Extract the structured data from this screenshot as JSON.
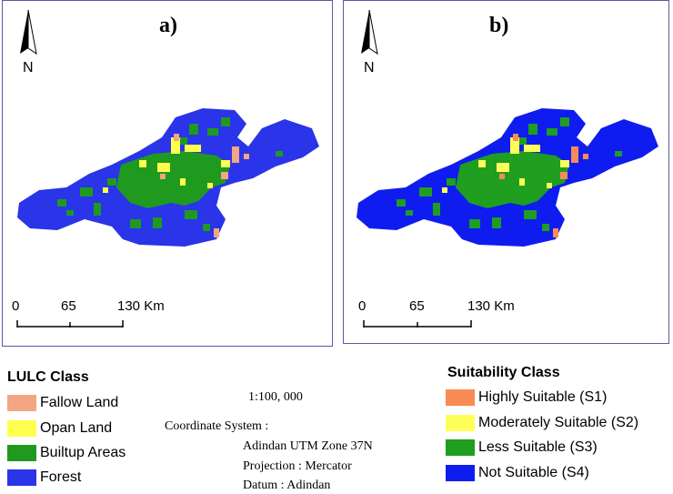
{
  "panels": [
    {
      "label": "a)",
      "north_label": "N",
      "scale_labels": [
        "0",
        "65",
        "130 Km"
      ]
    },
    {
      "label": "b)",
      "north_label": "N",
      "scale_labels": [
        "0",
        "65",
        "130 Km"
      ]
    }
  ],
  "colors": {
    "fallow": "#f4a582",
    "open": "#ffff4d",
    "builtup": "#1f9a1f",
    "forest": "#2a34e8",
    "highly": "#f98b54",
    "moderately": "#ffff5a",
    "less": "#1f9e1f",
    "not": "#0f1cf0"
  },
  "lulc_legend": {
    "title": "LULC Class",
    "items": [
      {
        "label": "Fallow Land",
        "color": "#f4a582"
      },
      {
        "label": "Opan Land",
        "color": "#ffff4d"
      },
      {
        "label": "Builtup Areas",
        "color": "#1f9a1f"
      },
      {
        "label": "Forest",
        "color": "#2a34e8"
      }
    ]
  },
  "info": {
    "scale": "1:100, 000",
    "coord_system": "Coordinate System :",
    "zone": "Adindan UTM Zone 37N",
    "projection": "Projection : Mercator",
    "datum": "Datum  : Adindan"
  },
  "suitability_legend": {
    "title": "Suitability Class",
    "items": [
      {
        "label": "Highly Suitable (S1)",
        "color": "#f98b54"
      },
      {
        "label": "Moderately Suitable (S2)",
        "color": "#ffff5a"
      },
      {
        "label": "Less Suitable (S3)",
        "color": "#1f9e1f"
      },
      {
        "label": "Not Suitable (S4)",
        "color": "#0f1cf0"
      }
    ]
  }
}
